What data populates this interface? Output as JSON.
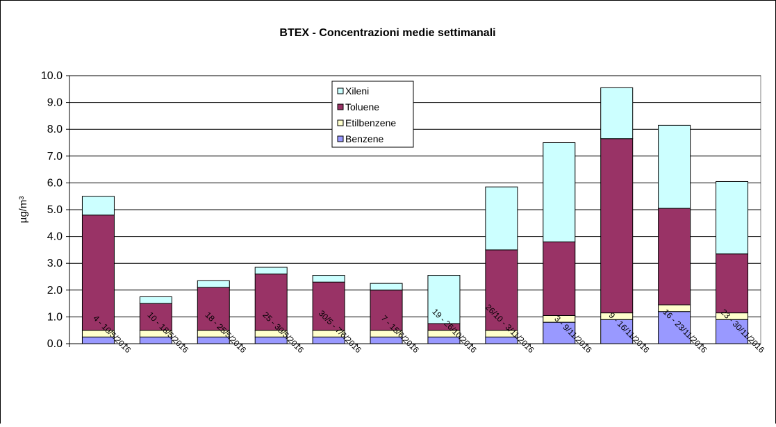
{
  "chart_data": {
    "type": "stacked_bar",
    "title": "BTEX - Concentrazioni medie settimanali",
    "y_label": "µg/m³",
    "categories": [
      "4 - 10/5/2016",
      "10 - 18/5/2016",
      "18 - 25/5/2016",
      "25 - 30/5/2016",
      "30/5 - 7/6/2016",
      "7 - 15/6/2016",
      "19 - 26/10/2016",
      "26/10 - 3/11/2016",
      "3 - 9/11/2016",
      "9 - 16/11/2016",
      "16 - 23/11/2016",
      "23 - 30/11/2016"
    ],
    "series": [
      {
        "name": "Benzene",
        "color": "#9999ff",
        "values": [
          0.25,
          0.25,
          0.25,
          0.25,
          0.25,
          0.25,
          0.25,
          0.25,
          0.8,
          0.9,
          1.2,
          0.9
        ]
      },
      {
        "name": "Etilbenzene",
        "color": "#ffffcc",
        "values": [
          0.25,
          0.25,
          0.25,
          0.25,
          0.25,
          0.25,
          0.25,
          0.25,
          0.25,
          0.25,
          0.25,
          0.25
        ]
      },
      {
        "name": "Toluene",
        "color": "#993366",
        "values": [
          4.3,
          1.0,
          1.6,
          2.1,
          1.8,
          1.5,
          0.25,
          3.0,
          2.75,
          6.5,
          3.6,
          2.2
        ]
      },
      {
        "name": "Xileni",
        "color": "#ccffff",
        "values": [
          0.7,
          0.25,
          0.25,
          0.25,
          0.25,
          0.25,
          1.8,
          2.35,
          3.7,
          1.9,
          3.1,
          2.7
        ]
      }
    ],
    "ylim": [
      0,
      10
    ],
    "yticks": [
      {
        "value": 0,
        "label": "0.0"
      },
      {
        "value": 1,
        "label": "1.0"
      },
      {
        "value": 2,
        "label": "2.0"
      },
      {
        "value": 3,
        "label": "3.0"
      },
      {
        "value": 4,
        "label": "4.0"
      },
      {
        "value": 5,
        "label": "5.0"
      },
      {
        "value": 6,
        "label": "6.0"
      },
      {
        "value": 7,
        "label": "7.0"
      },
      {
        "value": 8,
        "label": "8.0"
      },
      {
        "value": 9,
        "label": "9.0"
      },
      {
        "value": 10,
        "label": "10.0"
      }
    ],
    "grid": true
  }
}
